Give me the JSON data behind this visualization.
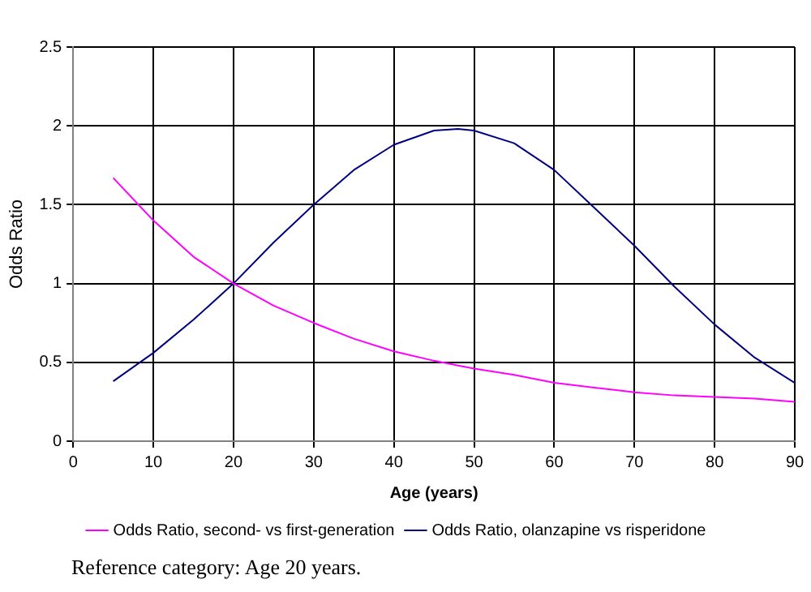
{
  "chart_data": {
    "type": "line",
    "xlabel": "Age (years)",
    "ylabel": "Odds Ratio",
    "x": [
      5,
      10,
      15,
      20,
      25,
      30,
      35,
      40,
      45,
      48,
      50,
      55,
      60,
      65,
      70,
      75,
      80,
      85,
      90
    ],
    "series": [
      {
        "name": "Odds Ratio, second- vs first-generation",
        "color": "#ff00ff",
        "values": [
          1.67,
          1.4,
          1.17,
          1.0,
          0.86,
          0.75,
          0.65,
          0.57,
          0.51,
          0.48,
          0.46,
          0.42,
          0.37,
          0.34,
          0.31,
          0.29,
          0.28,
          0.27,
          0.25
        ]
      },
      {
        "name": "Odds Ratio, olanzapine vs risperidone",
        "color": "#000080",
        "values": [
          0.38,
          0.56,
          0.77,
          1.0,
          1.26,
          1.5,
          1.72,
          1.88,
          1.97,
          1.98,
          1.97,
          1.89,
          1.72,
          1.48,
          1.24,
          0.98,
          0.74,
          0.53,
          0.37
        ]
      }
    ],
    "xlim": [
      0,
      90
    ],
    "xticks": [
      0,
      10,
      20,
      30,
      40,
      50,
      60,
      70,
      80,
      90
    ],
    "ylim": [
      0,
      2.5
    ],
    "yticks": [
      0,
      0.5,
      1,
      1.5,
      2,
      2.5
    ],
    "grid": true,
    "legend": "bottom",
    "marker": "none",
    "line_style": "solid",
    "annotations": [
      "Reference category: Age 20 years."
    ]
  }
}
